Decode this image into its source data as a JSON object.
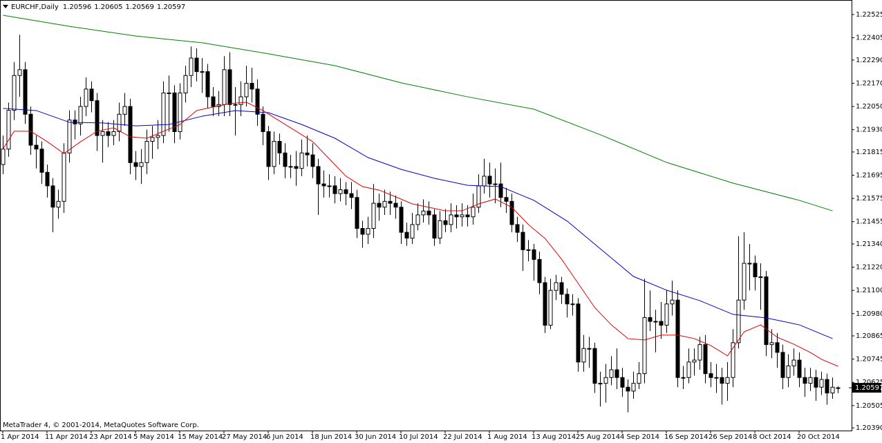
{
  "chart_data": {
    "type": "candlestick",
    "symbol": "EURCHF,Daily",
    "footer": "MetaTrader 4, © 2001-2014, MetaQuotes Software Corp.",
    "categories": [
      "1 Apr 2014",
      null,
      null,
      null,
      null,
      null,
      null,
      null,
      "11 Apr 2014",
      null,
      null,
      null,
      null,
      null,
      null,
      null,
      "23 Apr 2014",
      null,
      null,
      null,
      null,
      null,
      null,
      null,
      "5 May 2014",
      null,
      null,
      null,
      null,
      null,
      null,
      null,
      "15 May 2014",
      null,
      null,
      null,
      null,
      null,
      null,
      null,
      "27 May 2014",
      null,
      null,
      null,
      null,
      null,
      null,
      null,
      "6 Jun 2014",
      null,
      null,
      null,
      null,
      null,
      null,
      null,
      "18 Jun 2014",
      null,
      null,
      null,
      null,
      null,
      null,
      null,
      "30 Jun 2014",
      null,
      null,
      null,
      null,
      null,
      null,
      null,
      "10 Jul 2014",
      null,
      null,
      null,
      null,
      null,
      null,
      null,
      "22 Jul 2014",
      null,
      null,
      null,
      null,
      null,
      null,
      null,
      "1 Aug 2014",
      null,
      null,
      null,
      null,
      null,
      null,
      null,
      "13 Aug 2014",
      null,
      null,
      null,
      null,
      null,
      null,
      null,
      "25 Aug 2014",
      null,
      null,
      null,
      null,
      null,
      null,
      null,
      "4 Sep 2014",
      null,
      null,
      null,
      null,
      null,
      null,
      null,
      "16 Sep 2014",
      null,
      null,
      null,
      null,
      null,
      null,
      null,
      "26 Sep 2014",
      null,
      null,
      null,
      null,
      null,
      null,
      null,
      "8 Oct 2014",
      null,
      null,
      null,
      null,
      null,
      null,
      null,
      "20 Oct 2014",
      null,
      null,
      null,
      null,
      null,
      null,
      null
    ],
    "open": [
      1.2175,
      1.2183,
      1.2203,
      1.2221,
      1.2224,
      1.2201,
      1.2185,
      1.2183,
      1.2171,
      1.2164,
      1.2153,
      1.2156,
      1.2181,
      1.2198,
      1.2196,
      1.2205,
      1.2214,
      1.2208,
      1.219,
      1.2192,
      1.219,
      1.2192,
      1.2201,
      1.2205,
      1.2176,
      1.2174,
      1.2176,
      1.2187,
      1.2189,
      1.219,
      1.2212,
      1.2212,
      1.2192,
      1.2212,
      1.2221,
      1.223,
      1.2223,
      1.2223,
      1.221,
      1.2205,
      1.2206,
      1.2224,
      1.2206,
      1.2206,
      1.221,
      1.2217,
      1.2214,
      1.2201,
      1.2192,
      1.2174,
      1.2187,
      1.2181,
      1.2174,
      1.2174,
      1.2173,
      1.2181,
      1.218,
      1.2174,
      1.2165,
      1.2164,
      1.2164,
      1.216,
      1.2162,
      1.216,
      1.2158,
      1.2142,
      1.2139,
      1.2142,
      1.2155,
      1.2153,
      1.2156,
      1.2155,
      1.2153,
      1.214,
      1.2137,
      1.2144,
      1.2149,
      1.2151,
      1.2149,
      1.2137,
      1.2146,
      1.2144,
      1.2149,
      1.2148,
      1.2149,
      1.2148,
      1.2153,
      1.2164,
      1.2169,
      1.2165,
      1.2165,
      1.2158,
      1.2156,
      1.2144,
      1.214,
      1.2131,
      1.2131,
      1.2126,
      1.2114,
      1.2092,
      1.211,
      1.2114,
      1.2108,
      1.2103,
      1.2103,
      1.2073,
      1.208,
      1.208,
      1.2062,
      1.2062,
      1.2065,
      1.2069,
      1.2065,
      1.206,
      1.2058,
      1.2062,
      1.2067,
      1.2096,
      1.2094,
      1.2094,
      1.2092,
      1.2103,
      1.2105,
      1.2065,
      1.2065,
      1.2073,
      1.2074,
      1.2082,
      1.2067,
      1.2065,
      1.2065,
      1.2062,
      1.2065,
      1.2083,
      1.2105,
      1.2124,
      1.2124,
      1.2117,
      1.2117,
      1.2082,
      1.2083,
      1.2078,
      1.2065,
      1.2071,
      1.2074,
      1.2065,
      1.2062,
      1.2065,
      1.206,
      1.2064,
      1.2057,
      1.20596
    ],
    "high": [
      1.219,
      1.2207,
      1.2228,
      1.2242,
      1.2228,
      1.2205,
      1.219,
      1.2187,
      1.2175,
      1.2168,
      1.2162,
      1.2186,
      1.2203,
      1.2203,
      1.221,
      1.222,
      1.2218,
      1.2212,
      1.2198,
      1.2197,
      1.2198,
      1.2207,
      1.2212,
      1.2209,
      1.2182,
      1.2183,
      1.2193,
      1.2195,
      1.2198,
      1.2218,
      1.2221,
      1.2216,
      1.2217,
      1.2226,
      1.2236,
      1.2235,
      1.223,
      1.2227,
      1.2215,
      1.2213,
      1.2231,
      1.2233,
      1.2215,
      1.2218,
      1.2226,
      1.2225,
      1.2219,
      1.2205,
      1.2195,
      1.2192,
      1.2191,
      1.2186,
      1.218,
      1.2182,
      1.2188,
      1.219,
      1.2186,
      1.2178,
      1.2172,
      1.217,
      1.2169,
      1.2168,
      1.2166,
      1.2166,
      1.2162,
      1.2146,
      1.2148,
      1.2165,
      1.216,
      1.2162,
      1.2161,
      1.2159,
      1.2156,
      1.2145,
      1.215,
      1.2155,
      1.2157,
      1.2156,
      1.2152,
      1.2151,
      1.2152,
      1.2155,
      1.2154,
      1.2155,
      1.2154,
      1.216,
      1.217,
      1.2178,
      1.2176,
      1.2173,
      1.2176,
      1.2163,
      1.216,
      1.2148,
      1.2144,
      1.2136,
      1.2134,
      1.213,
      1.2117,
      1.2116,
      1.2118,
      1.2117,
      1.2111,
      1.2108,
      1.2106,
      1.2087,
      1.2086,
      1.2083,
      1.2068,
      1.2072,
      1.2076,
      1.208,
      1.207,
      1.2064,
      1.2068,
      1.2073,
      1.2116,
      1.211,
      1.21,
      1.2104,
      1.211,
      1.2115,
      1.211,
      1.2071,
      1.208,
      1.208,
      1.2086,
      1.2087,
      1.2073,
      1.2072,
      1.207,
      1.2073,
      1.209,
      1.2138,
      1.214,
      1.2134,
      1.2128,
      1.2124,
      1.212,
      1.209,
      1.2088,
      1.2082,
      1.2077,
      1.208,
      1.2078,
      1.207,
      1.207,
      1.2069,
      1.2068,
      1.2067,
      1.2065,
      1.20605
    ],
    "low": [
      1.217,
      1.2179,
      1.2198,
      1.221,
      1.2196,
      1.218,
      1.2173,
      1.2165,
      1.2158,
      1.214,
      1.2147,
      1.215,
      1.2176,
      1.2188,
      1.219,
      1.22,
      1.2202,
      1.2182,
      1.2176,
      1.2184,
      1.2185,
      1.2187,
      1.2195,
      1.217,
      1.2167,
      1.2165,
      1.217,
      1.2178,
      1.2183,
      1.2186,
      1.2192,
      1.2186,
      1.2188,
      1.2207,
      1.2215,
      1.2218,
      1.2212,
      1.2204,
      1.22,
      1.22,
      1.22,
      1.22,
      1.219,
      1.22,
      1.2205,
      1.2207,
      1.2195,
      1.2185,
      1.2167,
      1.217,
      1.2175,
      1.2168,
      1.2168,
      1.2164,
      1.2169,
      1.2174,
      1.2168,
      1.2149,
      1.2158,
      1.2158,
      1.2155,
      1.2156,
      1.2154,
      1.2152,
      1.2137,
      1.2132,
      1.2134,
      1.2137,
      1.2146,
      1.2149,
      1.2149,
      1.2147,
      1.2134,
      1.2133,
      1.2134,
      1.2141,
      1.2145,
      1.2144,
      1.2133,
      1.2134,
      1.214,
      1.214,
      1.2142,
      1.2143,
      1.2143,
      1.2144,
      1.215,
      1.216,
      1.2158,
      1.2155,
      1.2153,
      1.215,
      1.214,
      1.2135,
      1.212,
      1.2125,
      1.2115,
      1.2108,
      1.2088,
      1.209,
      1.2105,
      1.2103,
      1.2096,
      1.2097,
      1.2068,
      1.2068,
      1.207,
      1.2057,
      1.205,
      1.2052,
      1.2061,
      1.2059,
      1.2055,
      1.2047,
      1.2054,
      1.2059,
      1.2062,
      1.2089,
      1.2078,
      1.2085,
      1.2088,
      1.2097,
      1.206,
      1.2059,
      1.2062,
      1.2066,
      1.2069,
      1.2062,
      1.206,
      1.2057,
      1.2051,
      1.2053,
      1.206,
      1.208,
      1.21,
      1.211,
      1.211,
      1.21,
      1.2076,
      1.2075,
      1.207,
      1.2059,
      1.206,
      1.2066,
      1.206,
      1.2055,
      1.2058,
      1.2053,
      1.2056,
      1.2051,
      1.2054,
      1.20569
    ],
    "close": [
      1.2183,
      1.2203,
      1.2221,
      1.2224,
      1.2201,
      1.2185,
      1.2183,
      1.2171,
      1.2164,
      1.2153,
      1.2156,
      1.2181,
      1.2198,
      1.2196,
      1.2205,
      1.2214,
      1.2208,
      1.219,
      1.2192,
      1.219,
      1.2192,
      1.2201,
      1.2205,
      1.2176,
      1.2174,
      1.2176,
      1.2187,
      1.2189,
      1.219,
      1.2212,
      1.2212,
      1.2192,
      1.2212,
      1.2221,
      1.223,
      1.2223,
      1.2223,
      1.221,
      1.2205,
      1.2206,
      1.2224,
      1.2206,
      1.2206,
      1.221,
      1.2217,
      1.2214,
      1.2201,
      1.2192,
      1.2174,
      1.2187,
      1.2181,
      1.2174,
      1.2174,
      1.2173,
      1.2181,
      1.218,
      1.2174,
      1.2165,
      1.2164,
      1.2164,
      1.216,
      1.2162,
      1.216,
      1.2158,
      1.2142,
      1.2139,
      1.2142,
      1.2155,
      1.2153,
      1.2156,
      1.2155,
      1.2153,
      1.214,
      1.2137,
      1.2144,
      1.2149,
      1.2151,
      1.2149,
      1.2137,
      1.2146,
      1.2144,
      1.2149,
      1.2148,
      1.2149,
      1.2148,
      1.2153,
      1.2164,
      1.2169,
      1.2165,
      1.2165,
      1.2158,
      1.2156,
      1.2144,
      1.214,
      1.2131,
      1.2131,
      1.2126,
      1.2114,
      1.2092,
      1.211,
      1.2114,
      1.2108,
      1.2103,
      1.2103,
      1.2073,
      1.208,
      1.208,
      1.2062,
      1.2062,
      1.2065,
      1.2069,
      1.2065,
      1.206,
      1.2058,
      1.2062,
      1.2067,
      1.2096,
      1.2094,
      1.2094,
      1.2092,
      1.2103,
      1.2105,
      1.2065,
      1.2065,
      1.2073,
      1.2074,
      1.2082,
      1.2067,
      1.2065,
      1.2065,
      1.2062,
      1.2065,
      1.2083,
      1.2105,
      1.2124,
      1.2124,
      1.2117,
      1.2117,
      1.2082,
      1.2083,
      1.2078,
      1.2065,
      1.2071,
      1.2074,
      1.2065,
      1.2062,
      1.2065,
      1.206,
      1.2064,
      1.2057,
      1.206,
      1.20597
    ],
    "series": [
      {
        "color": "#008000",
        "x": [
          0,
          12,
          24,
          36,
          48,
          60,
          72,
          84,
          96,
          108,
          120,
          132,
          144,
          150
        ],
        "values": [
          1.22521,
          1.22464,
          1.22414,
          1.22379,
          1.22322,
          1.22261,
          1.22172,
          1.221,
          1.22036,
          1.21904,
          1.21761,
          1.21654,
          1.21565,
          1.21511
        ]
      },
      {
        "color": "#0000cc",
        "x": [
          0,
          6,
          12,
          18,
          24,
          30,
          36,
          42,
          48,
          54,
          60,
          66,
          72,
          78,
          84,
          90,
          96,
          102,
          108,
          114,
          120,
          126,
          132,
          138,
          144,
          150
        ],
        "values": [
          1.2204,
          1.22029,
          1.21968,
          1.21965,
          1.2195,
          1.21957,
          1.22,
          1.22029,
          1.22018,
          1.21957,
          1.21886,
          1.21786,
          1.21725,
          1.21679,
          1.21643,
          1.21636,
          1.21565,
          1.21458,
          1.21315,
          1.21172,
          1.21101,
          1.21047,
          1.20976,
          1.20958,
          1.20922,
          1.20851
        ]
      },
      {
        "color": "#e00000",
        "x": [
          0,
          2,
          5,
          8,
          11,
          14,
          17,
          20,
          23,
          26,
          29,
          32,
          35,
          38,
          41,
          44,
          47,
          50,
          53,
          56,
          59,
          62,
          65,
          68,
          71,
          74,
          77,
          80,
          83,
          86,
          89,
          92,
          95,
          98,
          101,
          104,
          107,
          110,
          113,
          116,
          119,
          122,
          125,
          128,
          131,
          134,
          137,
          140,
          143,
          146,
          148,
          151
        ],
        "values": [
          1.21832,
          1.21922,
          1.21922,
          1.21868,
          1.21807,
          1.21868,
          1.21922,
          1.2194,
          1.21893,
          1.21886,
          1.21922,
          1.21957,
          1.22029,
          1.22047,
          1.22065,
          1.22072,
          1.22029,
          1.21975,
          1.21922,
          1.21868,
          1.21779,
          1.2169,
          1.21636,
          1.21618,
          1.21583,
          1.21547,
          1.21529,
          1.21511,
          1.21511,
          1.21547,
          1.21572,
          1.21529,
          1.2144,
          1.21368,
          1.21261,
          1.21136,
          1.21011,
          1.20922,
          1.20851,
          1.20844,
          1.20869,
          1.20869,
          1.20851,
          1.20815,
          1.20762,
          1.20886,
          1.20922,
          1.20858,
          1.20822,
          1.20779,
          1.20744,
          1.20708
        ]
      }
    ],
    "ylim": [
      1.20376,
      1.226
    ],
    "yticks": [
      1.22525,
      1.22405,
      {
        "value": 1.2229,
        "label": "1.22290"
      },
      {
        "value": 1.2217,
        "label": "1.22170"
      },
      {
        "value": 1.2205,
        "label": "1.22050"
      },
      {
        "value": 1.2193,
        "label": "1.21930"
      },
      1.21815,
      1.21695,
      1.21575,
      1.21455,
      {
        "value": 1.2134,
        "label": "1.21340"
      },
      {
        "value": 1.2122,
        "label": "1.21220"
      },
      {
        "value": 1.211,
        "label": "1.21100"
      },
      {
        "value": 1.2098,
        "label": "1.20980"
      },
      1.20865,
      1.20745,
      1.20625,
      1.20505,
      {
        "value": 1.2039,
        "label": "1.20390"
      }
    ],
    "bull_color": "#ffffff",
    "bear_color": "#000000",
    "grid": false
  }
}
